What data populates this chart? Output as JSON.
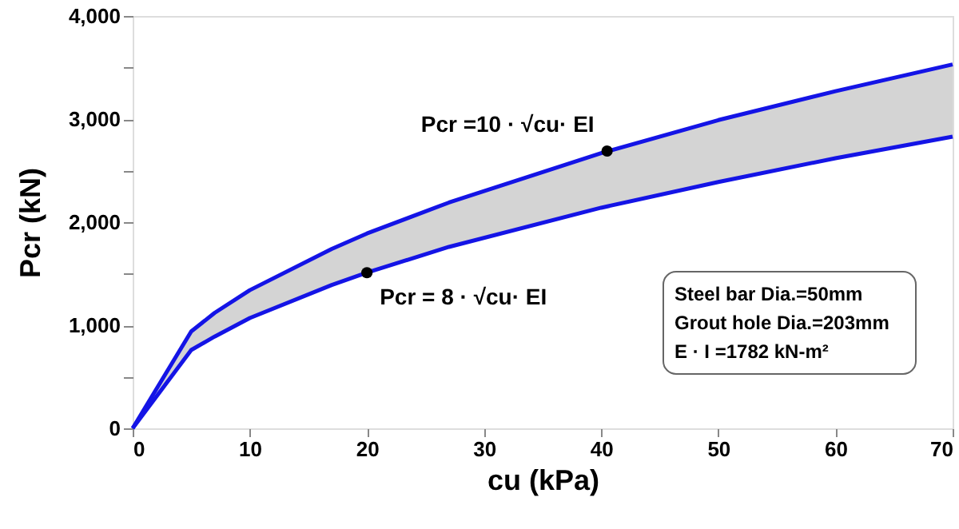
{
  "chart_data": {
    "type": "line",
    "xlabel": "cu (kPa)",
    "ylabel": "Pcr (kN)",
    "x": [
      0,
      5,
      7,
      10,
      17,
      20,
      27,
      40,
      50,
      60,
      70
    ],
    "series": [
      {
        "color": "#1414e6",
        "values": [
          0,
          940,
          1120,
          1340,
          1740,
          1890,
          2190,
          2670,
          2990,
          3270,
          3530
        ],
        "lower": [
          0,
          760,
          890,
          1070,
          1390,
          1510,
          1760,
          2140,
          2390,
          2620,
          2830
        ],
        "upper": [
          0,
          940,
          1120,
          1340,
          1740,
          1890,
          2190,
          2670,
          2990,
          3270,
          3530
        ]
      },
      {
        "color": "#1414e6",
        "values": [
          0,
          760,
          890,
          1070,
          1390,
          1510,
          1760,
          2140,
          2390,
          2620,
          2830
        ]
      }
    ],
    "xlim": [
      0,
      70
    ],
    "xticks": [
      0,
      10,
      20,
      30,
      40,
      50,
      60,
      70
    ],
    "ylim": [
      0,
      4000
    ],
    "yticks": [
      0,
      {
        "value": 500,
        "label": null
      },
      {
        "value": 1000,
        "label": "1,000"
      },
      {
        "value": 1500,
        "label": null
      },
      {
        "value": 2000,
        "label": "2,000"
      },
      {
        "value": 2500,
        "label": null
      },
      {
        "value": 3000,
        "label": "3,000"
      },
      {
        "value": 3500,
        "label": null
      },
      {
        "value": 4000,
        "label": "4,000"
      }
    ],
    "grid": false,
    "marker": "none",
    "line_style": "solid",
    "annotations": [
      {
        "text": "Pcr =10 · √cu· EI",
        "x": 40.5,
        "y": 2690
      },
      {
        "text": "Pcr = 8 · √cu· EI",
        "x": 20,
        "y": 1510
      },
      "Steel bar Dia.=50mm",
      "Grout hole Dia.=203mm",
      "E · I =1782 kN-m²"
    ]
  }
}
